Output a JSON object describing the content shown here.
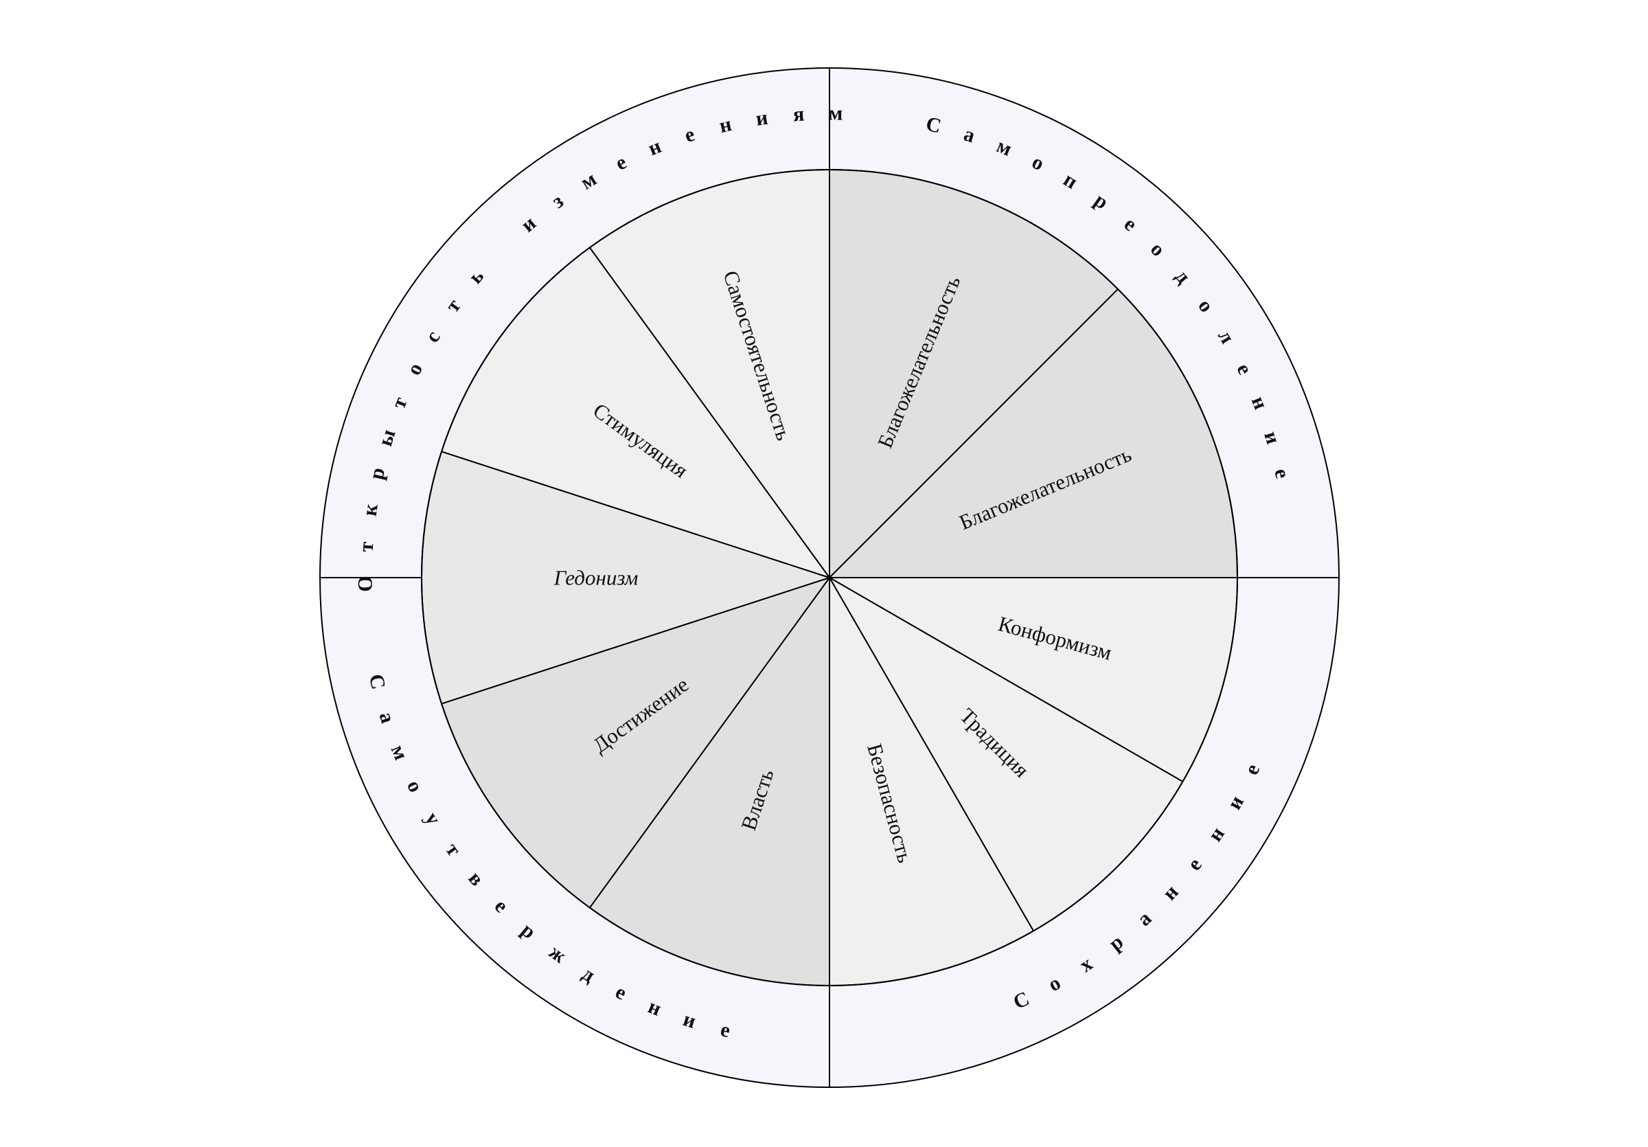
{
  "colors": {
    "outer_ring": "#f5f6fc",
    "stroke": "#000000",
    "text": "#111111"
  },
  "groups": [
    {
      "label": "Открытость изменениям",
      "start_deg": 270,
      "end_deg": 360
    },
    {
      "label": "Самопреодоление",
      "start_deg": 0,
      "end_deg": 90
    },
    {
      "label": "Сохранение",
      "start_deg": 90,
      "end_deg": 180
    },
    {
      "label": "Самоутверждение",
      "start_deg": 180,
      "end_deg": 270
    }
  ],
  "sectors": [
    {
      "label": "Благожелательность",
      "start_deg": 0,
      "end_deg": 45,
      "fill": "#e0e0e0",
      "italic": false
    },
    {
      "label": "Благожелательность",
      "start_deg": 45,
      "end_deg": 90,
      "fill": "#e0e0e0",
      "italic": false
    },
    {
      "label": "Конформизм",
      "start_deg": 90,
      "end_deg": 120,
      "fill": "#f0f0f0",
      "italic": false
    },
    {
      "label": "Традиция",
      "start_deg": 120,
      "end_deg": 150,
      "fill": "#f0f0f0",
      "italic": false
    },
    {
      "label": "Безопасность",
      "start_deg": 150,
      "end_deg": 180,
      "fill": "#f0f0f0",
      "italic": false
    },
    {
      "label": "Власть",
      "start_deg": 180,
      "end_deg": 216,
      "fill": "#e0e0e0",
      "italic": false
    },
    {
      "label": "Достижение",
      "start_deg": 216,
      "end_deg": 252,
      "fill": "#e0e0e0",
      "italic": false
    },
    {
      "label": "Гедонизм",
      "start_deg": 252,
      "end_deg": 288,
      "fill": "#e8e8e8",
      "italic": true
    },
    {
      "label": "Стимуляция",
      "start_deg": 288,
      "end_deg": 324,
      "fill": "#f0f0f0",
      "italic": false
    },
    {
      "label": "Самостоятельность",
      "start_deg": 324,
      "end_deg": 360,
      "fill": "#f0f0f0",
      "italic": false
    }
  ]
}
